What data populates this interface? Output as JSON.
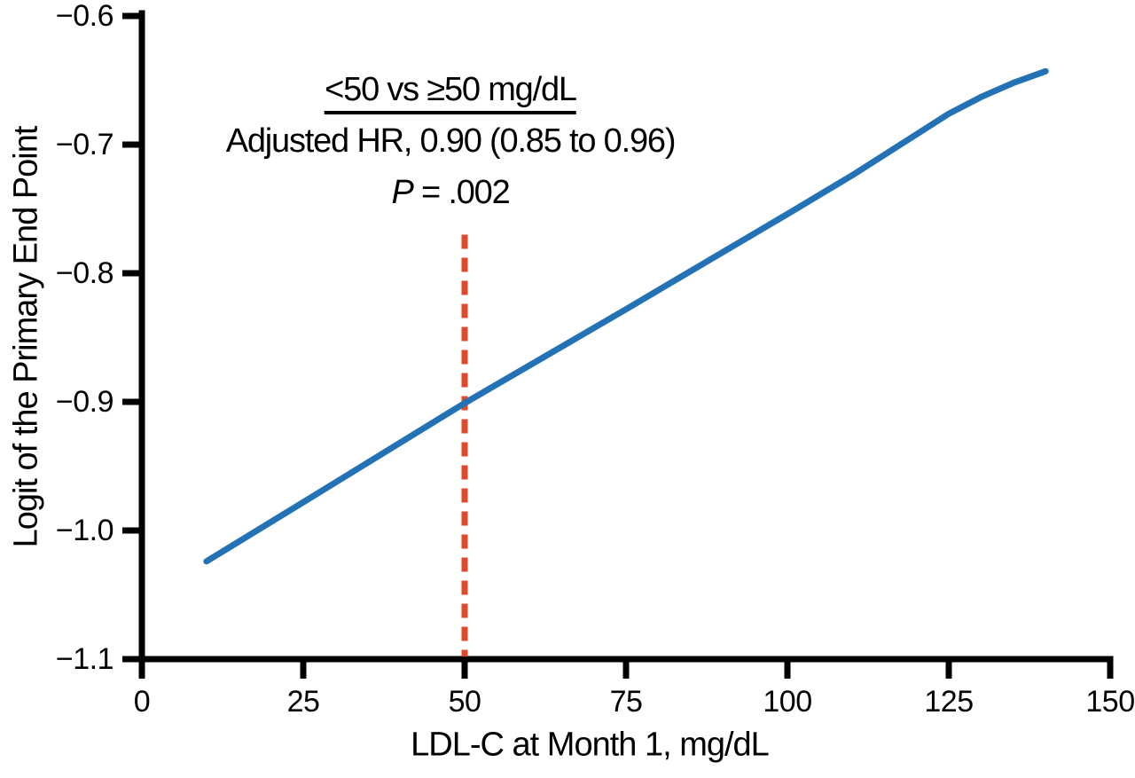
{
  "chart_data": {
    "type": "line",
    "xlabel": "LDL-C at Month 1, mg/dL",
    "ylabel": "Logit of the Primary End Point",
    "xlim": [
      0,
      150
    ],
    "ylim": [
      -1.1,
      -0.6
    ],
    "x_ticks": [
      0,
      25,
      50,
      75,
      100,
      125,
      150
    ],
    "x_tick_labels": [
      "0",
      "25",
      "50",
      "75",
      "100",
      "125",
      "150"
    ],
    "y_ticks": [
      -0.6,
      -0.7,
      -0.8,
      -0.9,
      -1.0,
      -1.1
    ],
    "y_tick_labels": [
      "−0.6",
      "−0.7",
      "−0.8",
      "−0.9",
      "−1.0",
      "−1.1"
    ],
    "grid": false,
    "legend": null,
    "axis_color": "#000000",
    "series": [
      {
        "name": "logit-of-primary-end-point-curve",
        "color": "#2272B5",
        "style": "solid",
        "points": [
          [
            10,
            -1.024
          ],
          [
            25,
            -0.978
          ],
          [
            50,
            -0.901
          ],
          [
            75,
            -0.828
          ],
          [
            100,
            -0.754
          ],
          [
            110,
            -0.724
          ],
          [
            120,
            -0.692
          ],
          [
            125,
            -0.676
          ],
          [
            130,
            -0.663
          ],
          [
            135,
            -0.652
          ],
          [
            140,
            -0.643
          ]
        ]
      }
    ],
    "reference_line": {
      "x": 50,
      "y_from": -1.098,
      "y_to": -0.77,
      "color": "#E2492B",
      "style": "dashed"
    },
    "annotation": {
      "line1": "<50 vs ≥50 mg/dL",
      "line2": "Adjusted HR, 0.90 (0.85 to 0.96)",
      "line3_italic": "P",
      "line3_rest": " = .002"
    }
  }
}
